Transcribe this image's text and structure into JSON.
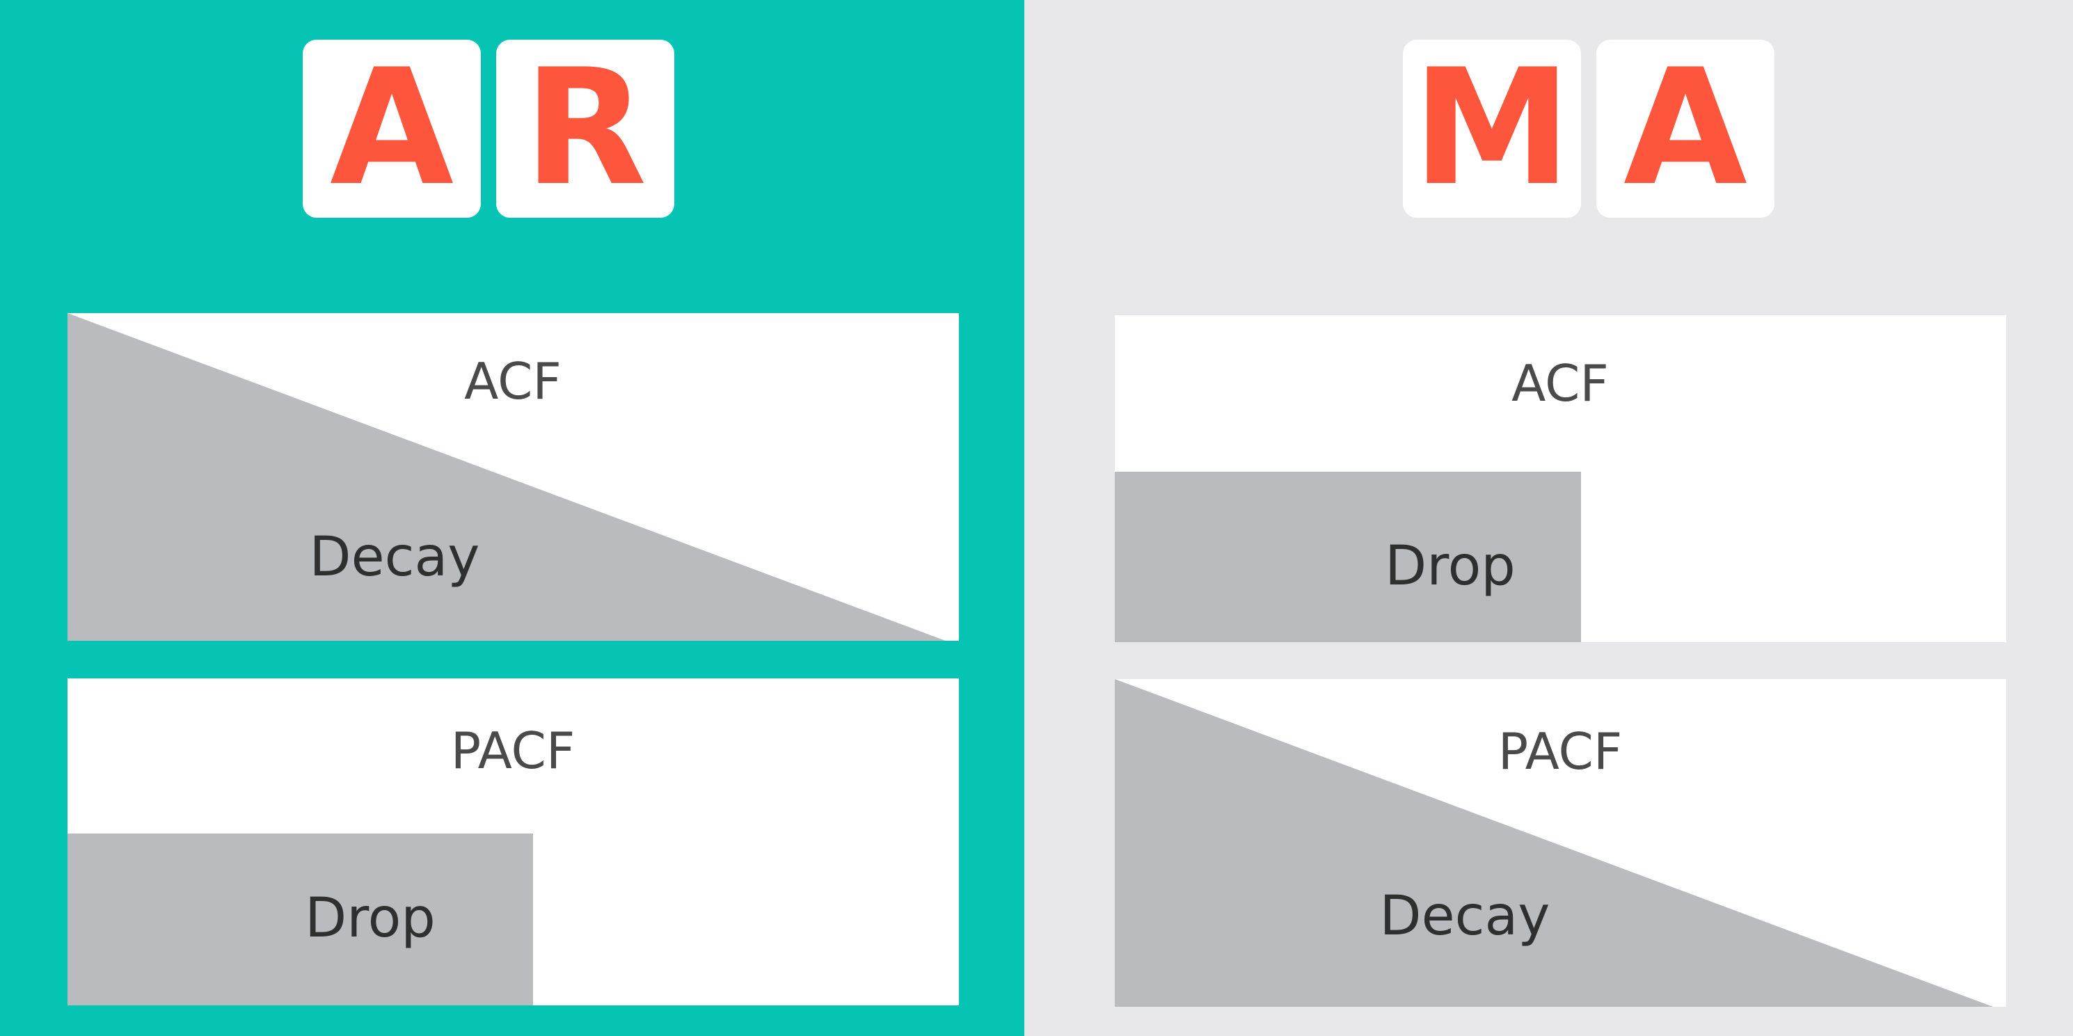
{
  "colors": {
    "ar_background": "#05c4b3",
    "ma_background": "#e8e7ea",
    "tile_letter": "#fe553d",
    "tile_background": "#ffffff",
    "box_background": "#ffffff",
    "shape_fill": "#b9bbbf"
  },
  "ar": {
    "letters": [
      "A",
      "R"
    ],
    "acf": {
      "title": "ACF",
      "pattern": "decay",
      "label": "Decay"
    },
    "pacf": {
      "title": "PACF",
      "pattern": "drop",
      "label": "Drop"
    }
  },
  "ma": {
    "letters": [
      "M",
      "A"
    ],
    "acf": {
      "title": "ACF",
      "pattern": "drop",
      "label": "Drop"
    },
    "pacf": {
      "title": "PACF",
      "pattern": "decay",
      "label": "Decay"
    }
  }
}
